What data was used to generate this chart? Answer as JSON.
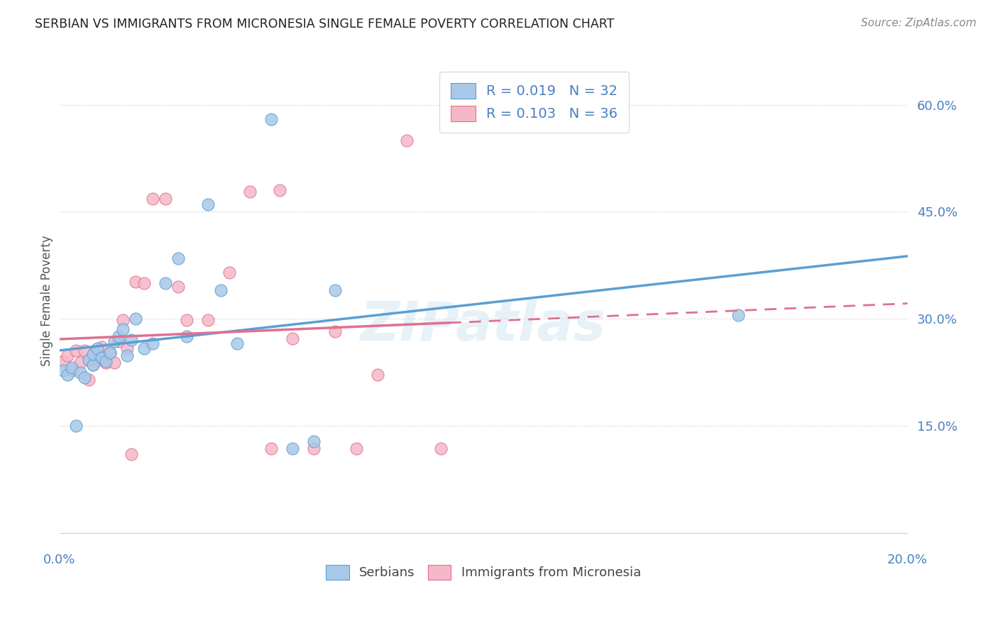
{
  "title": "SERBIAN VS IMMIGRANTS FROM MICRONESIA SINGLE FEMALE POVERTY CORRELATION CHART",
  "source": "Source: ZipAtlas.com",
  "ylabel": "Single Female Poverty",
  "ytick_labels": [
    "15.0%",
    "30.0%",
    "45.0%",
    "60.0%"
  ],
  "ytick_values": [
    0.15,
    0.3,
    0.45,
    0.6
  ],
  "xlim": [
    0.0,
    0.2
  ],
  "ylim": [
    -0.02,
    0.67
  ],
  "legend_label1": "Serbians",
  "legend_label2": "Immigrants from Micronesia",
  "R1": 0.019,
  "N1": 32,
  "R2": 0.103,
  "N2": 36,
  "color_serbian": "#a8c8e8",
  "color_micronesia": "#f5b8c8",
  "color_serbian_dark": "#5a9fd4",
  "color_micronesia_dark": "#e07090",
  "color_blue_text": "#4a7fc1",
  "watermark": "ZIPatlas",
  "serbian_x": [
    0.001,
    0.002,
    0.003,
    0.005,
    0.006,
    0.007,
    0.008,
    0.008,
    0.009,
    0.01,
    0.011,
    0.012,
    0.013,
    0.014,
    0.015,
    0.016,
    0.017,
    0.018,
    0.02,
    0.022,
    0.025,
    0.028,
    0.03,
    0.035,
    0.038,
    0.042,
    0.05,
    0.055,
    0.06,
    0.065,
    0.16,
    0.004
  ],
  "serbian_y": [
    0.228,
    0.222,
    0.232,
    0.225,
    0.218,
    0.242,
    0.235,
    0.25,
    0.258,
    0.245,
    0.24,
    0.252,
    0.268,
    0.275,
    0.285,
    0.248,
    0.27,
    0.3,
    0.258,
    0.265,
    0.35,
    0.385,
    0.275,
    0.46,
    0.34,
    0.265,
    0.58,
    0.118,
    0.128,
    0.34,
    0.305,
    0.15
  ],
  "micronesia_x": [
    0.001,
    0.002,
    0.003,
    0.004,
    0.005,
    0.006,
    0.007,
    0.008,
    0.009,
    0.01,
    0.01,
    0.011,
    0.012,
    0.013,
    0.014,
    0.015,
    0.016,
    0.018,
    0.02,
    0.022,
    0.025,
    0.028,
    0.03,
    0.035,
    0.04,
    0.045,
    0.05,
    0.052,
    0.055,
    0.06,
    0.065,
    0.07,
    0.075,
    0.082,
    0.09,
    0.017
  ],
  "micronesia_y": [
    0.24,
    0.248,
    0.228,
    0.255,
    0.238,
    0.255,
    0.215,
    0.235,
    0.242,
    0.248,
    0.26,
    0.238,
    0.252,
    0.238,
    0.268,
    0.298,
    0.258,
    0.352,
    0.35,
    0.468,
    0.468,
    0.345,
    0.298,
    0.298,
    0.365,
    0.478,
    0.118,
    0.48,
    0.272,
    0.118,
    0.282,
    0.118,
    0.222,
    0.55,
    0.118,
    0.11
  ]
}
